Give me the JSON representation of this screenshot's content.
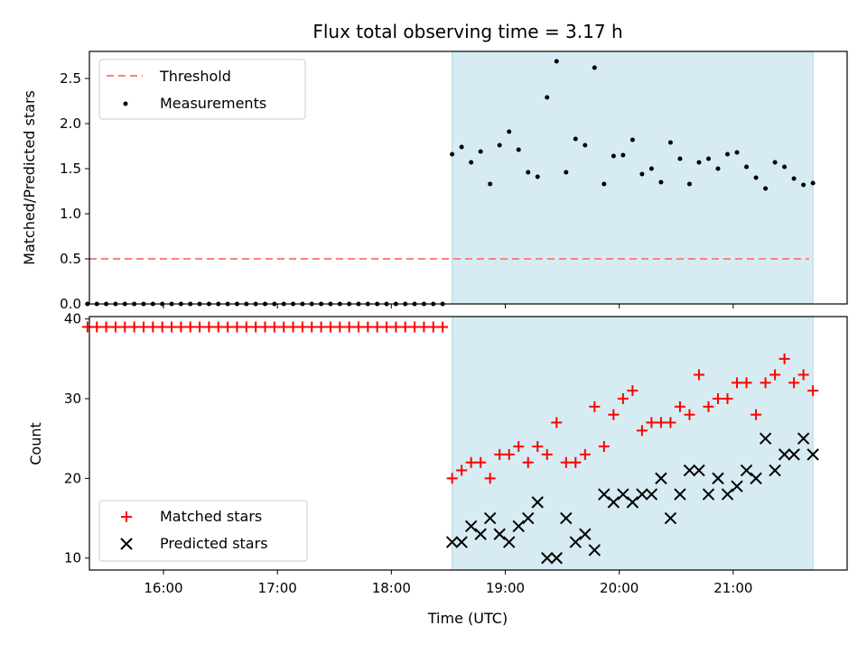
{
  "chart_data": [
    {
      "type": "scatter",
      "title": "Flux total observing time = 3.17 h",
      "xlabel": "",
      "ylabel": "Matched/Predicted stars",
      "xlim": [
        "15:21",
        "22:00"
      ],
      "ylim": [
        0,
        2.8
      ],
      "yticks": [
        "0.0",
        "0.5",
        "1.0",
        "1.5",
        "2.0",
        "2.5"
      ],
      "grid": false,
      "legend_placement": "top-left",
      "shaded_region": {
        "start": "18:32",
        "end": "21:42",
        "color": "#add8e6"
      },
      "threshold": {
        "name": "Threshold",
        "value": 0.5,
        "start": "15:21",
        "end": "21:40",
        "color": "#ff7f7f"
      },
      "measurements": {
        "name": "Measurements",
        "color": "#000000",
        "zero_points": {
          "start": "15:20",
          "end": "18:27",
          "count": 39,
          "value": 0
        },
        "points": [
          [
            "18:32",
            1.66
          ],
          [
            "18:37",
            1.74
          ],
          [
            "18:42",
            1.57
          ],
          [
            "18:47",
            1.69
          ],
          [
            "18:52",
            1.33
          ],
          [
            "18:57",
            1.76
          ],
          [
            "19:02",
            1.91
          ],
          [
            "19:07",
            1.71
          ],
          [
            "19:12",
            1.46
          ],
          [
            "19:17",
            1.41
          ],
          [
            "19:22",
            2.29
          ],
          [
            "19:27",
            2.69
          ],
          [
            "19:32",
            1.46
          ],
          [
            "19:37",
            1.83
          ],
          [
            "19:42",
            1.76
          ],
          [
            "19:47",
            2.62
          ],
          [
            "19:52",
            1.33
          ],
          [
            "19:57",
            1.64
          ],
          [
            "20:02",
            1.65
          ],
          [
            "20:07",
            1.82
          ],
          [
            "20:12",
            1.44
          ],
          [
            "20:17",
            1.5
          ],
          [
            "20:22",
            1.35
          ],
          [
            "20:27",
            1.79
          ],
          [
            "20:32",
            1.61
          ],
          [
            "20:37",
            1.33
          ],
          [
            "20:42",
            1.57
          ],
          [
            "20:47",
            1.61
          ],
          [
            "20:52",
            1.5
          ],
          [
            "20:57",
            1.66
          ],
          [
            "21:02",
            1.68
          ],
          [
            "21:07",
            1.52
          ],
          [
            "21:12",
            1.4
          ],
          [
            "21:17",
            1.28
          ],
          [
            "21:22",
            1.57
          ],
          [
            "21:27",
            1.52
          ],
          [
            "21:32",
            1.39
          ],
          [
            "21:37",
            1.32
          ],
          [
            "21:42",
            1.34
          ]
        ]
      }
    },
    {
      "type": "scatter",
      "xlabel": "Time (UTC)",
      "ylabel": "Count",
      "xlim": [
        "15:21",
        "22:00"
      ],
      "xticks": [
        "16:00",
        "17:00",
        "18:00",
        "19:00",
        "20:00",
        "21:00"
      ],
      "ylim": [
        8.5,
        40.3
      ],
      "yticks": [
        "10",
        "20",
        "30",
        "40"
      ],
      "grid": false,
      "legend_placement": "bottom-left",
      "shaded_region": {
        "start": "18:32",
        "end": "21:42",
        "color": "#add8e6"
      },
      "series": [
        {
          "name": "Matched stars",
          "marker": "plus",
          "color": "#ff0000",
          "constant_run": {
            "start": "15:20",
            "end": "18:27",
            "count": 39,
            "value": 39
          },
          "points": [
            [
              "18:32",
              20
            ],
            [
              "18:37",
              21
            ],
            [
              "18:42",
              22
            ],
            [
              "18:47",
              22
            ],
            [
              "18:52",
              20
            ],
            [
              "18:57",
              23
            ],
            [
              "19:02",
              23
            ],
            [
              "19:07",
              24
            ],
            [
              "19:12",
              22
            ],
            [
              "19:17",
              24
            ],
            [
              "19:22",
              23
            ],
            [
              "19:27",
              27
            ],
            [
              "19:32",
              22
            ],
            [
              "19:37",
              22
            ],
            [
              "19:42",
              23
            ],
            [
              "19:47",
              29
            ],
            [
              "19:52",
              24
            ],
            [
              "19:57",
              28
            ],
            [
              "20:02",
              30
            ],
            [
              "20:07",
              31
            ],
            [
              "20:12",
              26
            ],
            [
              "20:17",
              27
            ],
            [
              "20:22",
              27
            ],
            [
              "20:27",
              27
            ],
            [
              "20:32",
              29
            ],
            [
              "20:37",
              28
            ],
            [
              "20:42",
              33
            ],
            [
              "20:47",
              29
            ],
            [
              "20:52",
              30
            ],
            [
              "20:57",
              30
            ],
            [
              "21:02",
              32
            ],
            [
              "21:07",
              32
            ],
            [
              "21:12",
              28
            ],
            [
              "21:17",
              32
            ],
            [
              "21:22",
              33
            ],
            [
              "21:27",
              35
            ],
            [
              "21:32",
              32
            ],
            [
              "21:37",
              33
            ],
            [
              "21:42",
              31
            ]
          ]
        },
        {
          "name": "Predicted stars",
          "marker": "x",
          "color": "#000000",
          "points": [
            [
              "18:32",
              12
            ],
            [
              "18:37",
              12
            ],
            [
              "18:42",
              14
            ],
            [
              "18:47",
              13
            ],
            [
              "18:52",
              15
            ],
            [
              "18:57",
              13
            ],
            [
              "19:02",
              12
            ],
            [
              "19:07",
              14
            ],
            [
              "19:12",
              15
            ],
            [
              "19:17",
              17
            ],
            [
              "19:22",
              10
            ],
            [
              "19:27",
              10
            ],
            [
              "19:32",
              15
            ],
            [
              "19:37",
              12
            ],
            [
              "19:42",
              13
            ],
            [
              "19:47",
              11
            ],
            [
              "19:52",
              18
            ],
            [
              "19:57",
              17
            ],
            [
              "20:02",
              18
            ],
            [
              "20:07",
              17
            ],
            [
              "20:12",
              18
            ],
            [
              "20:17",
              18
            ],
            [
              "20:22",
              20
            ],
            [
              "20:27",
              15
            ],
            [
              "20:32",
              18
            ],
            [
              "20:37",
              21
            ],
            [
              "20:42",
              21
            ],
            [
              "20:47",
              18
            ],
            [
              "20:52",
              20
            ],
            [
              "20:57",
              18
            ],
            [
              "21:02",
              19
            ],
            [
              "21:07",
              21
            ],
            [
              "21:12",
              20
            ],
            [
              "21:17",
              25
            ],
            [
              "21:22",
              21
            ],
            [
              "21:27",
              23
            ],
            [
              "21:32",
              23
            ],
            [
              "21:37",
              25
            ],
            [
              "21:42",
              23
            ]
          ]
        }
      ]
    }
  ]
}
